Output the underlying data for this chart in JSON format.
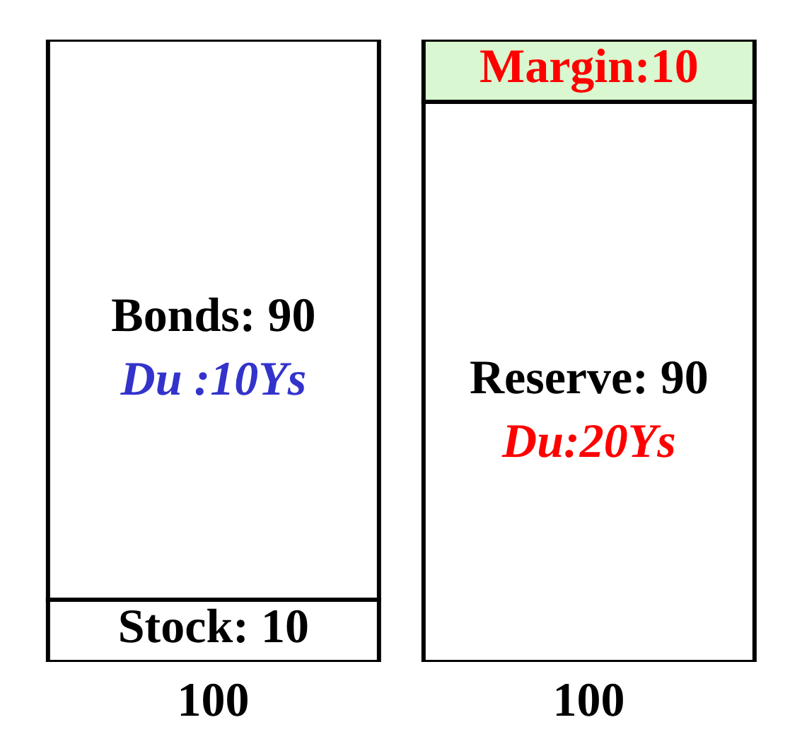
{
  "chart_data": {
    "type": "bar",
    "stacked": true,
    "categories": [
      null,
      null
    ],
    "ylim": [
      0,
      100
    ],
    "series": [
      {
        "colors": [
          "#ffffff",
          "#ffffff"
        ],
        "values": [
          10,
          90
        ],
        "value_labels": [
          "Stock: 10",
          "Reserve: 90"
        ]
      },
      {
        "colors": [
          "#ffffff",
          "#d9f7d0"
        ],
        "values": [
          90,
          10
        ],
        "value_labels": [
          "Bonds: 90",
          "Margin:10"
        ]
      }
    ],
    "totals": [
      "100",
      "100"
    ],
    "annotations": [
      "Du :10Ys",
      "Du:20Ys"
    ]
  }
}
